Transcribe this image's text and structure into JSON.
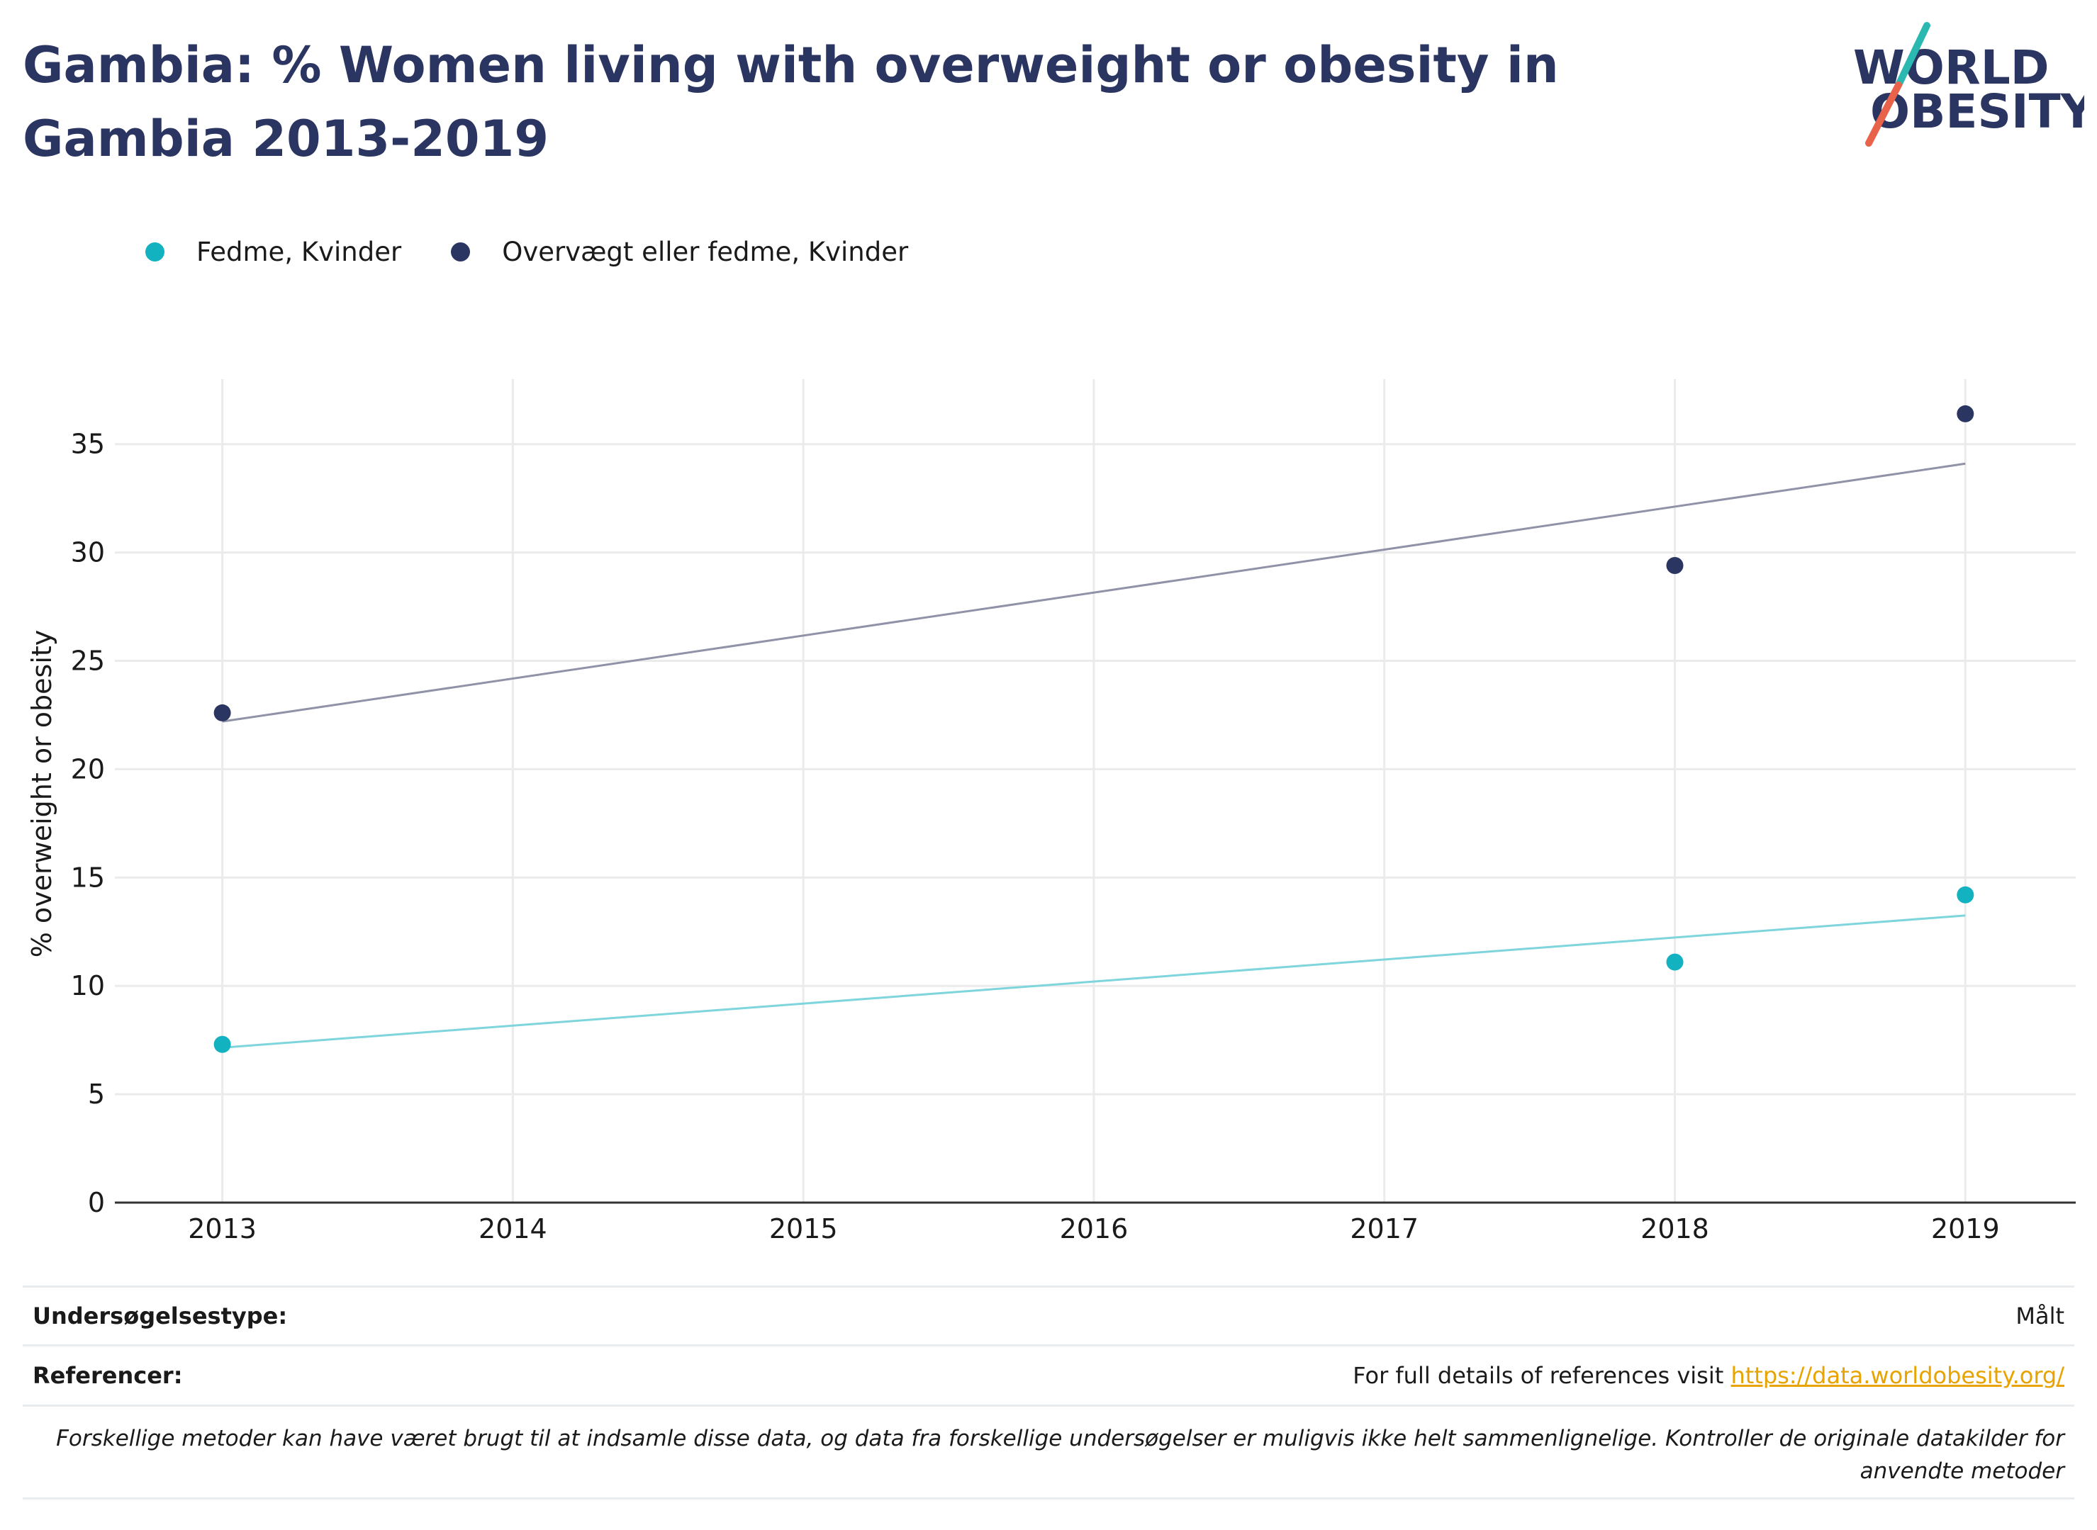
{
  "title": "Gambia: % Women living with overweight or obesity in Gambia 2013-2019",
  "logo": {
    "line1": "WORLD",
    "line2": "OBESITY"
  },
  "colors": {
    "title": "#2b3561",
    "obesity": "#12b2c0",
    "overweight": "#2b3561",
    "link": "#e8a300"
  },
  "chart_data": {
    "type": "scatter",
    "title": "Gambia: % Women living with overweight or obesity in Gambia 2013-2019",
    "xlabel": "",
    "ylabel": "% overweight or obesity",
    "x_ticks": [
      "2013",
      "2014",
      "2015",
      "2016",
      "2017",
      "2018",
      "2019"
    ],
    "xlim": [
      2012.63,
      2019.38
    ],
    "ylim": [
      0,
      38
    ],
    "y_ticks": [
      0,
      5,
      10,
      15,
      20,
      25,
      30,
      35
    ],
    "grid": true,
    "legend_position": "top-left",
    "series": [
      {
        "name": "Fedme, Kvinder",
        "color": "#12b2c0",
        "trend_color": "#7fd5dc",
        "points": [
          {
            "x": 2013,
            "y": 7.3
          },
          {
            "x": 2018,
            "y": 11.1
          },
          {
            "x": 2019,
            "y": 14.2
          }
        ],
        "trendline": [
          {
            "x": 2013,
            "y": 7.15
          },
          {
            "x": 2019,
            "y": 13.25
          }
        ]
      },
      {
        "name": "Overvægt eller fedme, Kvinder",
        "color": "#2b3561",
        "trend_color": "#9092a8",
        "points": [
          {
            "x": 2013,
            "y": 22.6
          },
          {
            "x": 2018,
            "y": 29.4
          },
          {
            "x": 2019,
            "y": 36.4
          }
        ],
        "trendline": [
          {
            "x": 2013,
            "y": 22.2
          },
          {
            "x": 2019,
            "y": 34.1
          }
        ]
      }
    ]
  },
  "footer": {
    "survey_type_label": "Undersøgelsestype:",
    "survey_type_value": "Målt",
    "references_label": "Referencer:",
    "references_text": "For full details of references visit ",
    "references_link": "https://data.worldobesity.org/",
    "note_line1": "Forskellige metoder kan have været brugt til at indsamle disse data, og data fra forskellige undersøgelser er muligvis ikke helt sammenlignelige. Kontroller de originale datakilder for",
    "note_line2": "anvendte metoder"
  }
}
